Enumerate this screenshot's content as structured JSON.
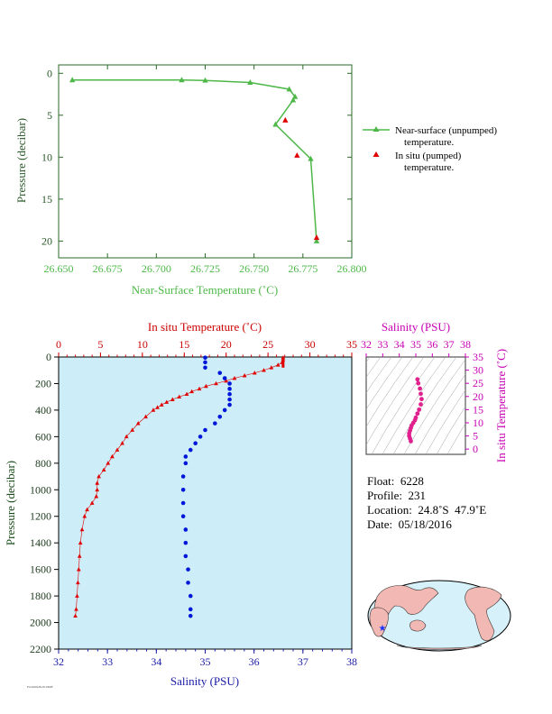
{
  "chart_data": [
    {
      "type": "line",
      "xlabel": "Near-Surface Temperature (˚C)",
      "ylabel": "Pressure (decibar)",
      "xlim": [
        26.65,
        26.8
      ],
      "ylim": [
        22,
        -1
      ],
      "xticks": [
        "26.650",
        "26.675",
        "26.700",
        "26.725",
        "26.750",
        "26.775",
        "26.800"
      ],
      "yticks": [
        "0",
        "5",
        "10",
        "15",
        "20"
      ],
      "grid": false,
      "legend": "right",
      "series": [
        {
          "name_line1": "Near-surface (unpumped)",
          "name_line2": "temperature.",
          "color": "#4db848",
          "x": [
            26.657,
            26.713,
            26.725,
            26.748,
            26.768,
            26.771,
            26.77,
            26.761,
            26.779,
            26.782
          ],
          "y": [
            0.8,
            0.8,
            0.85,
            1.1,
            1.9,
            2.8,
            3.2,
            6.1,
            10.2,
            20.0
          ]
        },
        {
          "name_line1": "In situ (pumped)",
          "name_line2": "temperature.",
          "color": "#e00000",
          "x": [
            26.766,
            26.772,
            26.782
          ],
          "y": [
            5.6,
            9.8,
            19.6
          ]
        }
      ]
    },
    {
      "type": "scatter",
      "ylabel": "Pressure (decibar)",
      "ylim": [
        2200,
        0
      ],
      "yticks": [
        "0",
        "200",
        "400",
        "600",
        "800",
        "1000",
        "1200",
        "1400",
        "1600",
        "1800",
        "2000",
        "2200"
      ],
      "top_axis": {
        "label": "In situ Temperature (˚C)",
        "lim": [
          0,
          35
        ],
        "ticks": [
          "0",
          "5",
          "10",
          "15",
          "20",
          "25",
          "30",
          "35"
        ],
        "color": "#cc0000"
      },
      "bottom_axis": {
        "label": "Salinity (PSU)",
        "lim": [
          32,
          38
        ],
        "ticks": [
          "32",
          "33",
          "34",
          "35",
          "36",
          "37",
          "38"
        ],
        "color": "#1a1aa6"
      },
      "background": "#cdeef9",
      "temperature_profile": {
        "color": "#e00000",
        "pressure": [
          5,
          20,
          40,
          60,
          80,
          100,
          120,
          140,
          160,
          180,
          200,
          220,
          240,
          260,
          280,
          300,
          320,
          340,
          360,
          380,
          400,
          450,
          500,
          550,
          600,
          650,
          700,
          750,
          800,
          850,
          900,
          950,
          1000,
          1050,
          1100,
          1150,
          1200,
          1300,
          1400,
          1500,
          1600,
          1700,
          1800,
          1900,
          1950
        ],
        "temperature": [
          26.8,
          26.8,
          26.7,
          26.2,
          25.4,
          24.5,
          23.4,
          22.2,
          21.0,
          20.0,
          18.8,
          17.6,
          16.8,
          15.9,
          15.3,
          14.4,
          13.6,
          12.9,
          12.3,
          11.8,
          11.3,
          10.4,
          9.5,
          8.8,
          8.1,
          7.6,
          7.0,
          6.4,
          5.9,
          5.4,
          4.8,
          4.6,
          4.6,
          4.5,
          4.0,
          3.4,
          3.1,
          2.8,
          2.6,
          2.5,
          2.4,
          2.3,
          2.2,
          2.1,
          2.0
        ]
      },
      "salinity_profile": {
        "color": "#0016d9",
        "pressure": [
          5,
          40,
          80,
          120,
          160,
          200,
          240,
          280,
          320,
          360,
          400,
          450,
          500,
          550,
          600,
          650,
          700,
          750,
          800,
          900,
          1000,
          1100,
          1200,
          1300,
          1400,
          1500,
          1600,
          1700,
          1800,
          1900,
          1950
        ],
        "salinity": [
          35.0,
          35.0,
          35.0,
          35.3,
          35.4,
          35.5,
          35.5,
          35.5,
          35.5,
          35.5,
          35.4,
          35.3,
          35.2,
          35.0,
          34.9,
          34.8,
          34.7,
          34.6,
          34.6,
          34.55,
          34.55,
          34.55,
          34.55,
          34.6,
          34.6,
          34.6,
          34.65,
          34.65,
          34.7,
          34.7,
          34.7
        ]
      }
    },
    {
      "type": "scatter",
      "xlabel": "Salinity (PSU)",
      "ylabel": "In situ Temperature (˚C)",
      "xlim": [
        32,
        38
      ],
      "ylim": [
        -2,
        35
      ],
      "xticks": [
        "32",
        "33",
        "34",
        "35",
        "36",
        "37",
        "38"
      ],
      "yticks": [
        "0",
        "5",
        "10",
        "15",
        "20",
        "25",
        "30",
        "35"
      ],
      "color": "#e0208c",
      "points": {
        "salinity": [
          35.1,
          35.15,
          35.25,
          35.3,
          35.35,
          35.3,
          35.2,
          35.1,
          35.0,
          34.95,
          34.85,
          34.75,
          34.7,
          34.65,
          34.6,
          34.6,
          34.65,
          34.7
        ],
        "temperature": [
          26.5,
          25,
          23,
          21,
          19,
          17,
          15,
          13.5,
          12,
          11,
          10,
          9,
          8,
          7,
          6,
          5,
          4,
          3
        ]
      }
    }
  ],
  "info": {
    "float": "Float:  6228",
    "profile": "Profile:  231",
    "location": "Location:  24.8˚S  47.9˚E",
    "date": "Date:  05/18/2016"
  },
  "footer": "FLOAT6228.231.PROF"
}
